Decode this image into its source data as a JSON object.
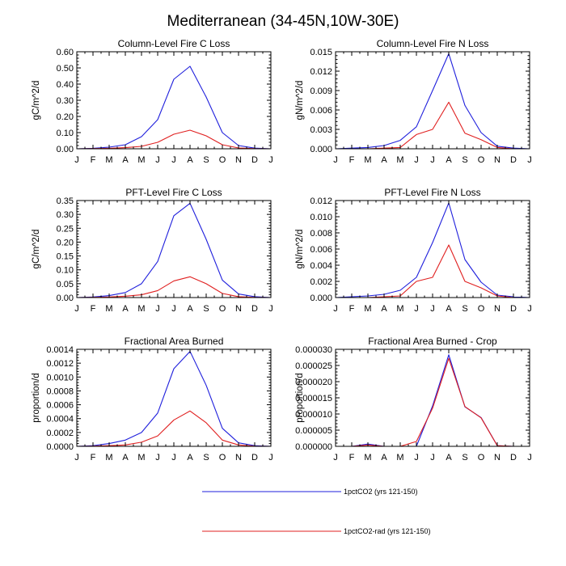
{
  "title": "Mediterranean (34-45N,10W-30E)",
  "colors": {
    "1pctCO2": "#1f1fdc",
    "1pctCO2-rad": "#e02020"
  },
  "legend": [
    {
      "label": "1pctCO2 (yrs 121-150)",
      "color": "#1f1fdc"
    },
    {
      "label": "1pctCO2-rad (yrs 121-150)",
      "color": "#e02020"
    }
  ],
  "chart_data": [
    {
      "type": "line",
      "title": "Column-Level Fire C Loss",
      "ylabel": "gC/m^2/d",
      "categories": [
        "J",
        "F",
        "M",
        "A",
        "M",
        "J",
        "J",
        "A",
        "S",
        "O",
        "N",
        "D",
        "J"
      ],
      "ylim": [
        0,
        0.6
      ],
      "yticks": [
        "0.00",
        "0.10",
        "0.20",
        "0.30",
        "0.40",
        "0.50",
        "0.60"
      ],
      "series": [
        {
          "name": "1pctCO2 (yrs 121-150)",
          "color": "#1f1fdc",
          "values": [
            0.0,
            0.003,
            0.01,
            0.025,
            0.075,
            0.18,
            0.43,
            0.51,
            0.32,
            0.1,
            0.02,
            0.004,
            0.0
          ]
        },
        {
          "name": "1pctCO2-rad (yrs 121-150)",
          "color": "#e02020",
          "values": [
            0.0,
            0.001,
            0.003,
            0.007,
            0.015,
            0.04,
            0.09,
            0.115,
            0.08,
            0.025,
            0.005,
            0.001,
            0.0
          ]
        }
      ]
    },
    {
      "type": "line",
      "title": "Column-Level Fire N Loss",
      "ylabel": "gN/m^2/d",
      "categories": [
        "J",
        "F",
        "M",
        "A",
        "M",
        "J",
        "J",
        "A",
        "S",
        "O",
        "N",
        "D",
        "J"
      ],
      "ylim": [
        0,
        0.015
      ],
      "yticks": [
        "0.000",
        "0.003",
        "0.006",
        "0.009",
        "0.012",
        "0.015"
      ],
      "series": [
        {
          "name": "1pctCO2 (yrs 121-150)",
          "color": "#1f1fdc",
          "values": [
            0.0,
            0.0001,
            0.0002,
            0.0005,
            0.0013,
            0.0034,
            0.009,
            0.0147,
            0.0067,
            0.0025,
            0.0004,
            0.0001,
            0.0
          ]
        },
        {
          "name": "1pctCO2-rad (yrs 121-150)",
          "color": "#e02020",
          "values": [
            0.0,
            0.0,
            0.0,
            0.0001,
            0.0002,
            0.0022,
            0.003,
            0.0072,
            0.0024,
            0.0014,
            0.0002,
            0.0,
            0.0
          ]
        }
      ]
    },
    {
      "type": "line",
      "title": "PFT-Level Fire C Loss",
      "ylabel": "gC/m^2/d",
      "categories": [
        "J",
        "F",
        "M",
        "A",
        "M",
        "J",
        "J",
        "A",
        "S",
        "O",
        "N",
        "D",
        "J"
      ],
      "ylim": [
        0,
        0.35
      ],
      "yticks": [
        "0.00",
        "0.05",
        "0.10",
        "0.15",
        "0.20",
        "0.25",
        "0.30",
        "0.35"
      ],
      "series": [
        {
          "name": "1pctCO2 (yrs 121-150)",
          "color": "#1f1fdc",
          "values": [
            0.0,
            0.002,
            0.007,
            0.018,
            0.05,
            0.13,
            0.295,
            0.34,
            0.21,
            0.063,
            0.013,
            0.003,
            0.0
          ]
        },
        {
          "name": "1pctCO2-rad (yrs 121-150)",
          "color": "#e02020",
          "values": [
            0.0,
            0.0005,
            0.002,
            0.005,
            0.01,
            0.025,
            0.06,
            0.075,
            0.05,
            0.015,
            0.003,
            0.0005,
            0.0
          ]
        }
      ]
    },
    {
      "type": "line",
      "title": "PFT-Level Fire N Loss",
      "ylabel": "gN/m^2/d",
      "categories": [
        "J",
        "F",
        "M",
        "A",
        "M",
        "J",
        "J",
        "A",
        "S",
        "O",
        "N",
        "D",
        "J"
      ],
      "ylim": [
        0,
        0.012
      ],
      "yticks": [
        "0.000",
        "0.002",
        "0.004",
        "0.006",
        "0.008",
        "0.010",
        "0.012"
      ],
      "series": [
        {
          "name": "1pctCO2 (yrs 121-150)",
          "color": "#1f1fdc",
          "values": [
            0.0,
            0.0001,
            0.0002,
            0.0004,
            0.0009,
            0.0025,
            0.0068,
            0.0117,
            0.0047,
            0.0019,
            0.0003,
            0.0001,
            0.0
          ]
        },
        {
          "name": "1pctCO2-rad (yrs 121-150)",
          "color": "#e02020",
          "values": [
            0.0,
            0.0,
            0.0,
            0.0001,
            0.0002,
            0.002,
            0.0025,
            0.0065,
            0.002,
            0.0012,
            0.0002,
            0.0,
            0.0
          ]
        }
      ]
    },
    {
      "type": "line",
      "title": "Fractional Area Burned",
      "ylabel": "proportion/d",
      "categories": [
        "J",
        "F",
        "M",
        "A",
        "M",
        "J",
        "J",
        "A",
        "S",
        "O",
        "N",
        "D",
        "J"
      ],
      "ylim": [
        0,
        0.0014
      ],
      "yticks": [
        "0.0000",
        "0.0002",
        "0.0004",
        "0.0006",
        "0.0008",
        "0.0010",
        "0.0012",
        "0.0014"
      ],
      "series": [
        {
          "name": "1pctCO2 (yrs 121-150)",
          "color": "#1f1fdc",
          "values": [
            0.0,
            1e-05,
            4e-05,
            9e-05,
            0.0002,
            0.00048,
            0.00112,
            0.00137,
            0.00088,
            0.00026,
            5e-05,
            1e-05,
            0.0
          ]
        },
        {
          "name": "1pctCO2-rad (yrs 121-150)",
          "color": "#e02020",
          "values": [
            0.0,
            3e-06,
            1e-05,
            2e-05,
            6e-05,
            0.00015,
            0.00038,
            0.00051,
            0.00034,
            9e-05,
            2e-05,
            3e-06,
            0.0
          ]
        }
      ]
    },
    {
      "type": "line",
      "title": "Fractional Area Burned - Crop",
      "ylabel": "proportion/d",
      "categories": [
        "J",
        "F",
        "M",
        "A",
        "M",
        "J",
        "J",
        "A",
        "S",
        "O",
        "N",
        "D",
        "J"
      ],
      "ylim": [
        0,
        3e-05
      ],
      "yticks": [
        "0.000000",
        "0.000005",
        "0.000010",
        "0.000015",
        "0.000020",
        "0.000025",
        "0.000030"
      ],
      "series": [
        {
          "name": "1pctCO2 (yrs 121-150)",
          "color": "#1f1fdc",
          "values": [
            0.0,
            0.0,
            7e-07,
            0.0,
            0.0,
            0.0,
            1.25e-05,
            2.83e-05,
            1.22e-05,
            8.9e-06,
            2e-07,
            0.0,
            0.0
          ]
        },
        {
          "name": "1pctCO2-rad (yrs 121-150)",
          "color": "#e02020",
          "values": [
            0.0,
            0.0,
            4e-07,
            0.0,
            0.0,
            1.5e-06,
            1.18e-05,
            2.72e-05,
            1.23e-05,
            8.8e-06,
            2e-07,
            0.0,
            0.0
          ]
        }
      ]
    }
  ]
}
